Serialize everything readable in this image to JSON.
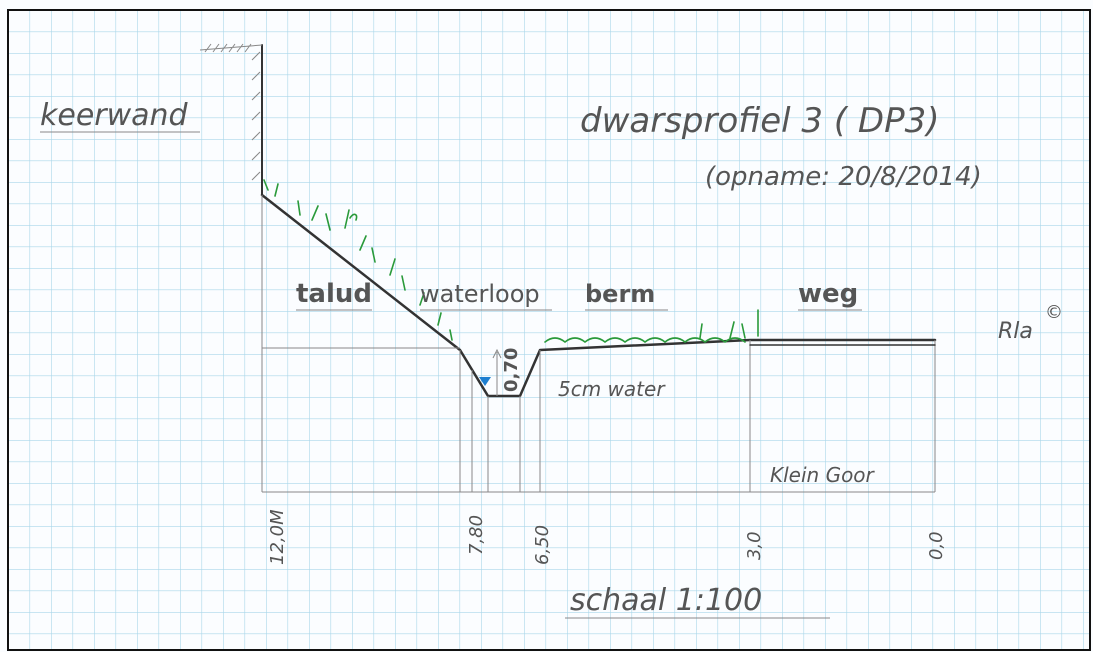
{
  "title": "dwarsprofiel 3 ( DP3)",
  "subtitle": "(opname: 20/8/2014)",
  "labels": {
    "wall": "keerwand",
    "slope": "talud",
    "watercourse": "waterloop",
    "verge": "berm",
    "road": "weg",
    "author": "Rla",
    "copyright": "©",
    "depth": "0,70",
    "water": "5cm water",
    "area": "Klein Goor"
  },
  "distances": [
    "12,0M",
    "7,80",
    "6,50",
    "3,0",
    "0,0"
  ],
  "scale": "schaal 1:100"
}
